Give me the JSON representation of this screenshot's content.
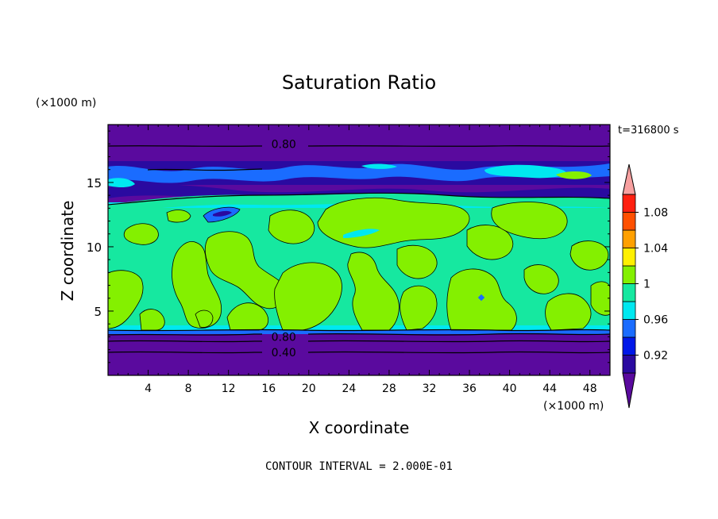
{
  "chart_data": {
    "type": "heatmap",
    "title": "Saturation Ratio",
    "xlabel": "X coordinate",
    "ylabel": "Z coordinate",
    "x_unit": "(×1000 m)",
    "y_unit": "(×1000 m)",
    "time_label": "t=316800 s",
    "footer": "CONTOUR INTERVAL = 2.000E-01",
    "xlim": [
      0,
      50
    ],
    "ylim": [
      0,
      19.5
    ],
    "x_ticks": [
      "4",
      "8",
      "12",
      "16",
      "20",
      "24",
      "28",
      "32",
      "36",
      "40",
      "44",
      "48"
    ],
    "y_ticks": [
      "5",
      "10",
      "15"
    ],
    "x_tick_values": [
      4,
      8,
      12,
      16,
      20,
      24,
      28,
      32,
      36,
      40,
      44,
      48
    ],
    "y_tick_values": [
      5,
      10,
      15
    ],
    "contour_labels": [
      {
        "text": "0.80",
        "x": 17.5,
        "z": 18.0
      },
      {
        "text": "0.80",
        "x": 17.5,
        "z": 3.0
      },
      {
        "text": "0.40",
        "x": 17.5,
        "z": 1.8
      }
    ],
    "colorbar": {
      "labels": [
        "1.08",
        "1.04",
        "1",
        "0.96",
        "0.92"
      ],
      "levels": [
        0.92,
        0.94,
        0.96,
        0.98,
        1.0,
        1.02,
        1.04,
        1.06,
        1.08,
        1.1
      ],
      "colors": [
        "#5a0a9e",
        "#2a0aa0",
        "#0018e8",
        "#1a6cff",
        "#00e8f0",
        "#16e8a0",
        "#84f000",
        "#fff000",
        "#ffa000",
        "#ff5000",
        "#ff2010",
        "#f7a0a0"
      ]
    },
    "layers": [
      {
        "z": [
          0.0,
          3.4
        ],
        "level": "0.92"
      },
      {
        "z": [
          3.4,
          3.6
        ],
        "level": "0.96"
      },
      {
        "z": [
          3.6,
          4.0
        ],
        "level": "0.98"
      },
      {
        "z": [
          4.0,
          12.8
        ],
        "level": "1.00"
      },
      {
        "z": [
          12.8,
          13.5
        ],
        "level": "0.98"
      },
      {
        "z": [
          13.5,
          14.2
        ],
        "level": "0.92"
      },
      {
        "z": [
          14.2,
          17.0
        ],
        "level": "0.94"
      },
      {
        "z": [
          17.0,
          19.5
        ],
        "level": "0.92"
      }
    ]
  }
}
